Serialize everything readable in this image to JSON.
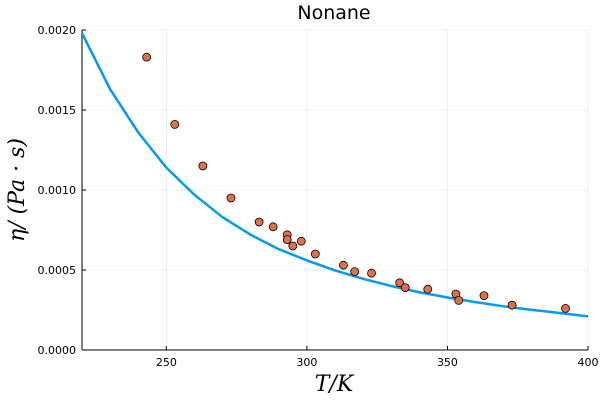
{
  "chart_data": {
    "type": "scatter",
    "title": "Nonane",
    "xlabel": "T/K",
    "ylabel": "η/ (Pa · s)",
    "xlim": [
      220,
      400
    ],
    "ylim": [
      0.0,
      0.002
    ],
    "x_ticks": [
      250,
      300,
      350,
      400
    ],
    "x_tick_labels": [
      "250",
      "300",
      "350",
      "400"
    ],
    "y_ticks": [
      0.0,
      0.0005,
      0.001,
      0.0015,
      0.002
    ],
    "y_tick_labels": [
      "0.0000",
      "0.0005",
      "0.0010",
      "0.0015",
      "0.0020"
    ],
    "grid": true,
    "legend": "none",
    "series": [
      {
        "kind": "line",
        "color": "#009af9",
        "x": [
          220,
          230,
          240,
          250,
          260,
          270,
          280,
          290,
          300,
          310,
          320,
          330,
          340,
          350,
          360,
          370,
          380,
          390,
          400
        ],
        "y": [
          0.00198,
          0.00163,
          0.00136,
          0.00114,
          0.00097,
          0.00083,
          0.00072,
          0.00063,
          0.00056,
          0.000497,
          0.000445,
          0.0004,
          0.000361,
          0.000328,
          0.000299,
          0.000273,
          0.000251,
          0.000231,
          0.00021
        ]
      },
      {
        "kind": "scatter",
        "color": "#e26f46",
        "x": [
          243,
          253,
          263,
          273,
          283,
          288,
          293,
          293,
          295,
          298,
          303,
          313,
          317,
          323,
          333,
          335,
          343,
          353,
          354,
          363,
          373,
          392
        ],
        "y": [
          0.00183,
          0.00141,
          0.00115,
          0.00095,
          0.0008,
          0.00077,
          0.00072,
          0.00069,
          0.00065,
          0.00068,
          0.0006,
          0.00053,
          0.00049,
          0.00048,
          0.00042,
          0.00039,
          0.00038,
          0.00035,
          0.00031,
          0.00034,
          0.00028,
          0.00026
        ]
      }
    ]
  }
}
